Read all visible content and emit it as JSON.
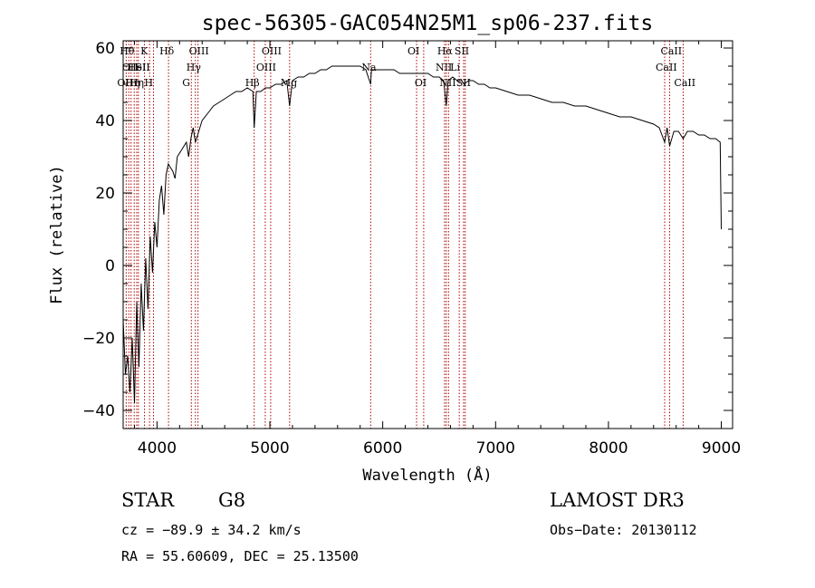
{
  "chart_data": {
    "type": "line",
    "title": "spec-56305-GAC054N25M1_sp06-237.fits",
    "xlabel": "Wavelength (Å)",
    "ylabel": "Flux (relative)",
    "xlim": [
      3700,
      9100
    ],
    "ylim": [
      -45,
      62
    ],
    "xticks": [
      4000,
      5000,
      6000,
      7000,
      8000,
      9000
    ],
    "yticks": [
      -40,
      -20,
      0,
      20,
      40,
      60
    ],
    "grid": false,
    "series": [
      {
        "x": [
          3700,
          3720,
          3740,
          3760,
          3780,
          3800,
          3820,
          3840,
          3860,
          3880,
          3900,
          3920,
          3940,
          3960,
          3980,
          4000,
          4020,
          4040,
          4060,
          4080,
          4100,
          4120,
          4140,
          4160,
          4180,
          4200,
          4220,
          4240,
          4260,
          4280,
          4300,
          4320,
          4340,
          4360,
          4380,
          4400,
          4450,
          4500,
          4550,
          4600,
          4650,
          4700,
          4750,
          4800,
          4850,
          4861,
          4880,
          4920,
          4960,
          5000,
          5050,
          5100,
          5150,
          5175,
          5200,
          5250,
          5300,
          5350,
          5400,
          5450,
          5500,
          5550,
          5600,
          5650,
          5700,
          5750,
          5800,
          5850,
          5893,
          5900,
          5950,
          6000,
          6050,
          6100,
          6150,
          6200,
          6250,
          6300,
          6350,
          6400,
          6450,
          6500,
          6540,
          6563,
          6580,
          6620,
          6660,
          6700,
          6720,
          6760,
          6800,
          6850,
          6900,
          6950,
          7000,
          7100,
          7200,
          7300,
          7400,
          7500,
          7600,
          7700,
          7800,
          7900,
          8000,
          8100,
          8200,
          8300,
          8400,
          8450,
          8498,
          8520,
          8542,
          8580,
          8620,
          8662,
          8700,
          8750,
          8800,
          8850,
          8900,
          8950,
          8990,
          9000
        ],
        "y": [
          -15,
          -30,
          -25,
          -35,
          -20,
          -38,
          -10,
          -28,
          -5,
          -18,
          2,
          -12,
          8,
          -2,
          12,
          5,
          18,
          22,
          14,
          25,
          28,
          27,
          26,
          24,
          30,
          31,
          32,
          33,
          34,
          30,
          35,
          38,
          34,
          36,
          38,
          40,
          42,
          44,
          45,
          46,
          47,
          48,
          48,
          49,
          48,
          38,
          48,
          48,
          49,
          49,
          50,
          50,
          51,
          44,
          51,
          52,
          52,
          53,
          53,
          54,
          54,
          55,
          55,
          55,
          55,
          55,
          55,
          54,
          50,
          54,
          54,
          54,
          54,
          54,
          53,
          53,
          53,
          53,
          53,
          53,
          52,
          52,
          51,
          44,
          51,
          52,
          51,
          51,
          50,
          51,
          51,
          50,
          50,
          49,
          49,
          48,
          47,
          47,
          46,
          45,
          45,
          44,
          44,
          43,
          42,
          41,
          41,
          40,
          39,
          38,
          34,
          38,
          33,
          37,
          37,
          35,
          37,
          37,
          36,
          36,
          35,
          35,
          34,
          10
        ]
      }
    ],
    "lines": [
      {
        "wl": 3727,
        "labels": [
          "OII"
        ],
        "tier": 3
      },
      {
        "wl": 3750,
        "labels": [
          "Hθ"
        ],
        "tier": 1
      },
      {
        "wl": 3770,
        "labels": [
          "OII"
        ],
        "tier": 2
      },
      {
        "wl": 3798,
        "labels": [
          "Hη"
        ],
        "tier": 3
      },
      {
        "wl": 3820,
        "labels": [
          "HeI"
        ],
        "tier": 2
      },
      {
        "wl": 3835,
        "labels": [
          "Hη"
        ],
        "tier": 3
      },
      {
        "wl": 3889,
        "labels": [
          "SII"
        ],
        "tier": 2
      },
      {
        "wl": 3934,
        "labels": [
          "K"
        ],
        "tier": 1
      },
      {
        "wl": 3969,
        "labels": [
          "H"
        ],
        "tier": 3
      },
      {
        "wl": 4102,
        "labels": [
          "Hδ"
        ],
        "tier": 1
      },
      {
        "wl": 4304,
        "labels": [
          "G"
        ],
        "tier": 3
      },
      {
        "wl": 4340,
        "labels": [
          "Hγ"
        ],
        "tier": 2
      },
      {
        "wl": 4363,
        "labels": [
          "OIII"
        ],
        "tier": 1
      },
      {
        "wl": 4861,
        "labels": [
          "Hβ"
        ],
        "tier": 3
      },
      {
        "wl": 4959,
        "labels": [
          "OIII"
        ],
        "tier": 2
      },
      {
        "wl": 5007,
        "labels": [
          "OIII"
        ],
        "tier": 1
      },
      {
        "wl": 5175,
        "labels": [
          "Mg"
        ],
        "tier": 3
      },
      {
        "wl": 5893,
        "labels": [
          "Na"
        ],
        "tier": 2
      },
      {
        "wl": 6300,
        "labels": [
          "OI"
        ],
        "tier": 1
      },
      {
        "wl": 6363,
        "labels": [
          "OI"
        ],
        "tier": 3
      },
      {
        "wl": 6548,
        "labels": [
          "NII"
        ],
        "tier": 2
      },
      {
        "wl": 6563,
        "labels": [
          "Hα"
        ],
        "tier": 1
      },
      {
        "wl": 6583,
        "labels": [
          "NII"
        ],
        "tier": 3
      },
      {
        "wl": 6678,
        "labels": [
          "Li"
        ],
        "tier": 2
      },
      {
        "wl": 6716,
        "labels": [
          "SII"
        ],
        "tier": 1
      },
      {
        "wl": 6731,
        "labels": [
          "SII"
        ],
        "tier": 3
      },
      {
        "wl": 8498,
        "labels": [
          "CaII"
        ],
        "tier": 2
      },
      {
        "wl": 8542,
        "labels": [
          "CaII"
        ],
        "tier": 1
      },
      {
        "wl": 8662,
        "labels": [
          "CaII"
        ],
        "tier": 3
      }
    ]
  },
  "info": {
    "class": "STAR",
    "subclass": "G8",
    "survey": "LAMOST DR3",
    "cz": "cz = −89.9 ± 34.2 km/s",
    "obs_date": "Obs−Date: 20130112",
    "radec": "RA =  55.60609, DEC =  25.13500"
  }
}
